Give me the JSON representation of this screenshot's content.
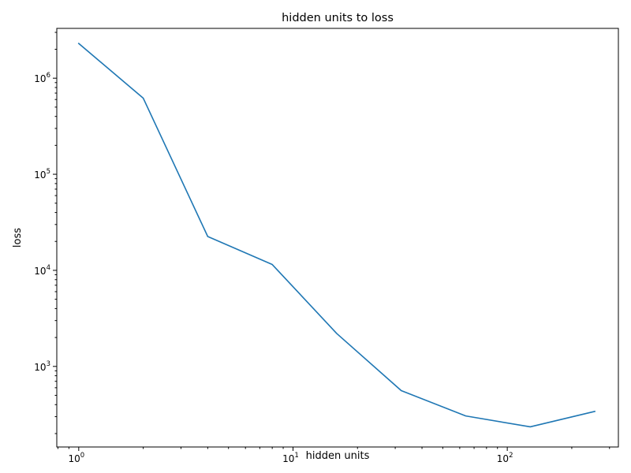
{
  "chart_data": {
    "type": "line",
    "title": "hidden units to loss",
    "xlabel": "hidden units",
    "ylabel": "loss",
    "xscale": "log",
    "yscale": "log",
    "xlim": [
      0.79,
      330
    ],
    "ylim": [
      145,
      3300000
    ],
    "grid": false,
    "legend": "none",
    "color": "#1f77b4",
    "x_ticks": [
      {
        "base": "10",
        "exp": "0",
        "value": 1
      },
      {
        "base": "10",
        "exp": "1",
        "value": 10
      },
      {
        "base": "10",
        "exp": "2",
        "value": 100
      }
    ],
    "y_ticks": [
      {
        "base": "10",
        "exp": "3",
        "value": 1000
      },
      {
        "base": "10",
        "exp": "4",
        "value": 10000
      },
      {
        "base": "10",
        "exp": "5",
        "value": 100000
      },
      {
        "base": "10",
        "exp": "6",
        "value": 1000000
      }
    ],
    "series": [
      {
        "x": [
          1,
          2,
          4,
          8,
          16,
          32,
          64,
          128,
          256
        ],
        "y": [
          2300000,
          620000,
          22500,
          11500,
          2200,
          560,
          305,
          235,
          340
        ]
      }
    ]
  }
}
